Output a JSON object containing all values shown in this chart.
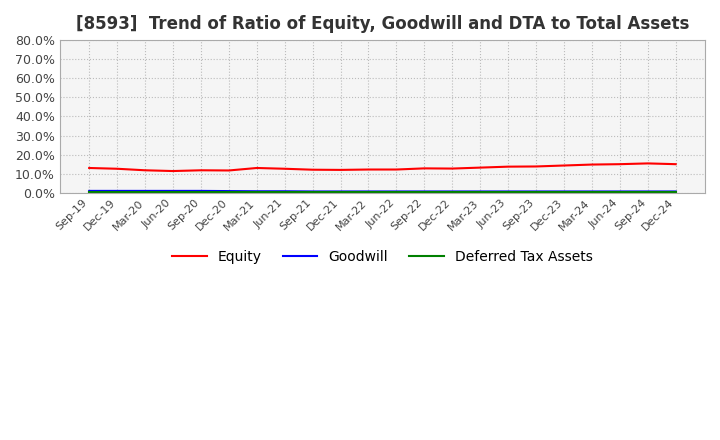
{
  "title": "[8593]  Trend of Ratio of Equity, Goodwill and DTA to Total Assets",
  "title_fontsize": 12,
  "background_color": "#ffffff",
  "plot_bg_color": "#f5f5f5",
  "grid_color": "#bbbbbb",
  "ylim": [
    0.0,
    0.8
  ],
  "yticks": [
    0.0,
    0.1,
    0.2,
    0.3,
    0.4,
    0.5,
    0.6,
    0.7,
    0.8
  ],
  "ytick_labels": [
    "0.0%",
    "10.0%",
    "20.0%",
    "30.0%",
    "40.0%",
    "50.0%",
    "60.0%",
    "70.0%",
    "80.0%"
  ],
  "x_labels": [
    "Sep-19",
    "Dec-19",
    "Mar-20",
    "Jun-20",
    "Sep-20",
    "Dec-20",
    "Mar-21",
    "Jun-21",
    "Sep-21",
    "Dec-21",
    "Mar-22",
    "Jun-22",
    "Sep-22",
    "Dec-22",
    "Mar-23",
    "Jun-23",
    "Sep-23",
    "Dec-23",
    "Mar-24",
    "Jun-24",
    "Sep-24",
    "Dec-24"
  ],
  "equity": [
    0.13,
    0.126,
    0.118,
    0.114,
    0.118,
    0.117,
    0.13,
    0.126,
    0.121,
    0.12,
    0.122,
    0.122,
    0.128,
    0.127,
    0.132,
    0.137,
    0.138,
    0.143,
    0.148,
    0.15,
    0.154,
    0.15
  ],
  "goodwill": [
    0.01,
    0.01,
    0.01,
    0.01,
    0.01,
    0.009,
    0.008,
    0.008,
    0.007,
    0.007,
    0.007,
    0.007,
    0.007,
    0.007,
    0.007,
    0.007,
    0.007,
    0.007,
    0.007,
    0.007,
    0.007,
    0.007
  ],
  "dta": [
    0.002,
    0.002,
    0.002,
    0.002,
    0.002,
    0.002,
    0.002,
    0.002,
    0.002,
    0.002,
    0.002,
    0.002,
    0.002,
    0.002,
    0.002,
    0.002,
    0.002,
    0.002,
    0.002,
    0.002,
    0.002,
    0.002
  ],
  "equity_color": "#ff0000",
  "goodwill_color": "#0000ff",
  "dta_color": "#008000",
  "legend_labels": [
    "Equity",
    "Goodwill",
    "Deferred Tax Assets"
  ]
}
